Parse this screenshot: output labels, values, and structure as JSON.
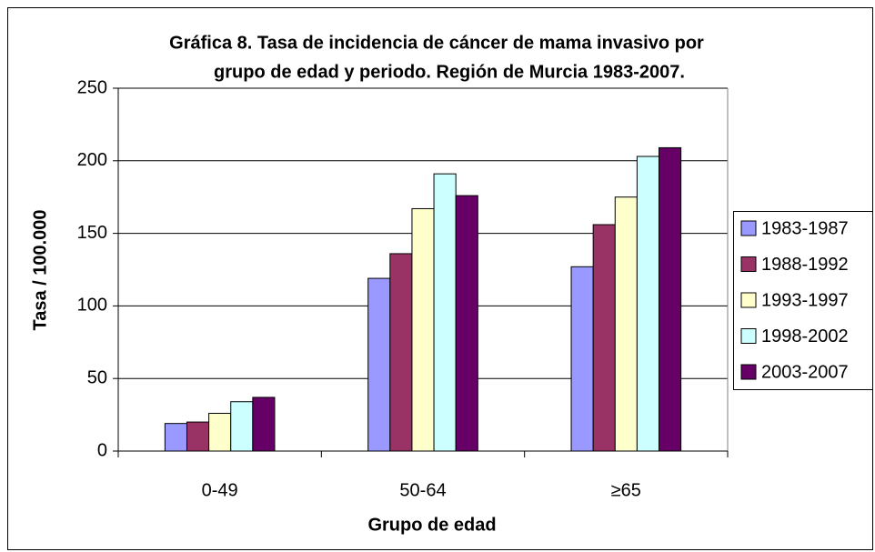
{
  "chart_data": {
    "type": "bar",
    "title": [
      "Gráfica 8. Tasa de incidencia de cáncer de mama invasivo por",
      "grupo de edad y periodo. Región de Murcia 1983-2007."
    ],
    "x_label": "Grupo de edad",
    "y_label": "Tasa / 100.000",
    "categories": [
      "0-49",
      "50-64",
      "≥65"
    ],
    "series": [
      {
        "name": "1983-1987",
        "color": "#9999ff",
        "values": [
          19,
          119,
          127
        ]
      },
      {
        "name": "1988-1992",
        "color": "#993366",
        "values": [
          20,
          136,
          156
        ]
      },
      {
        "name": "1993-1997",
        "color": "#ffffcc",
        "values": [
          26,
          167,
          175
        ]
      },
      {
        "name": "1998-2002",
        "color": "#ccffff",
        "values": [
          34,
          191,
          203
        ]
      },
      {
        "name": "2003-2007",
        "color": "#660066",
        "values": [
          37,
          176,
          209
        ]
      }
    ],
    "ylim": [
      0,
      250
    ],
    "yticks": [
      0,
      50,
      100,
      150,
      200,
      250
    ],
    "grid": true,
    "legend": "right"
  }
}
